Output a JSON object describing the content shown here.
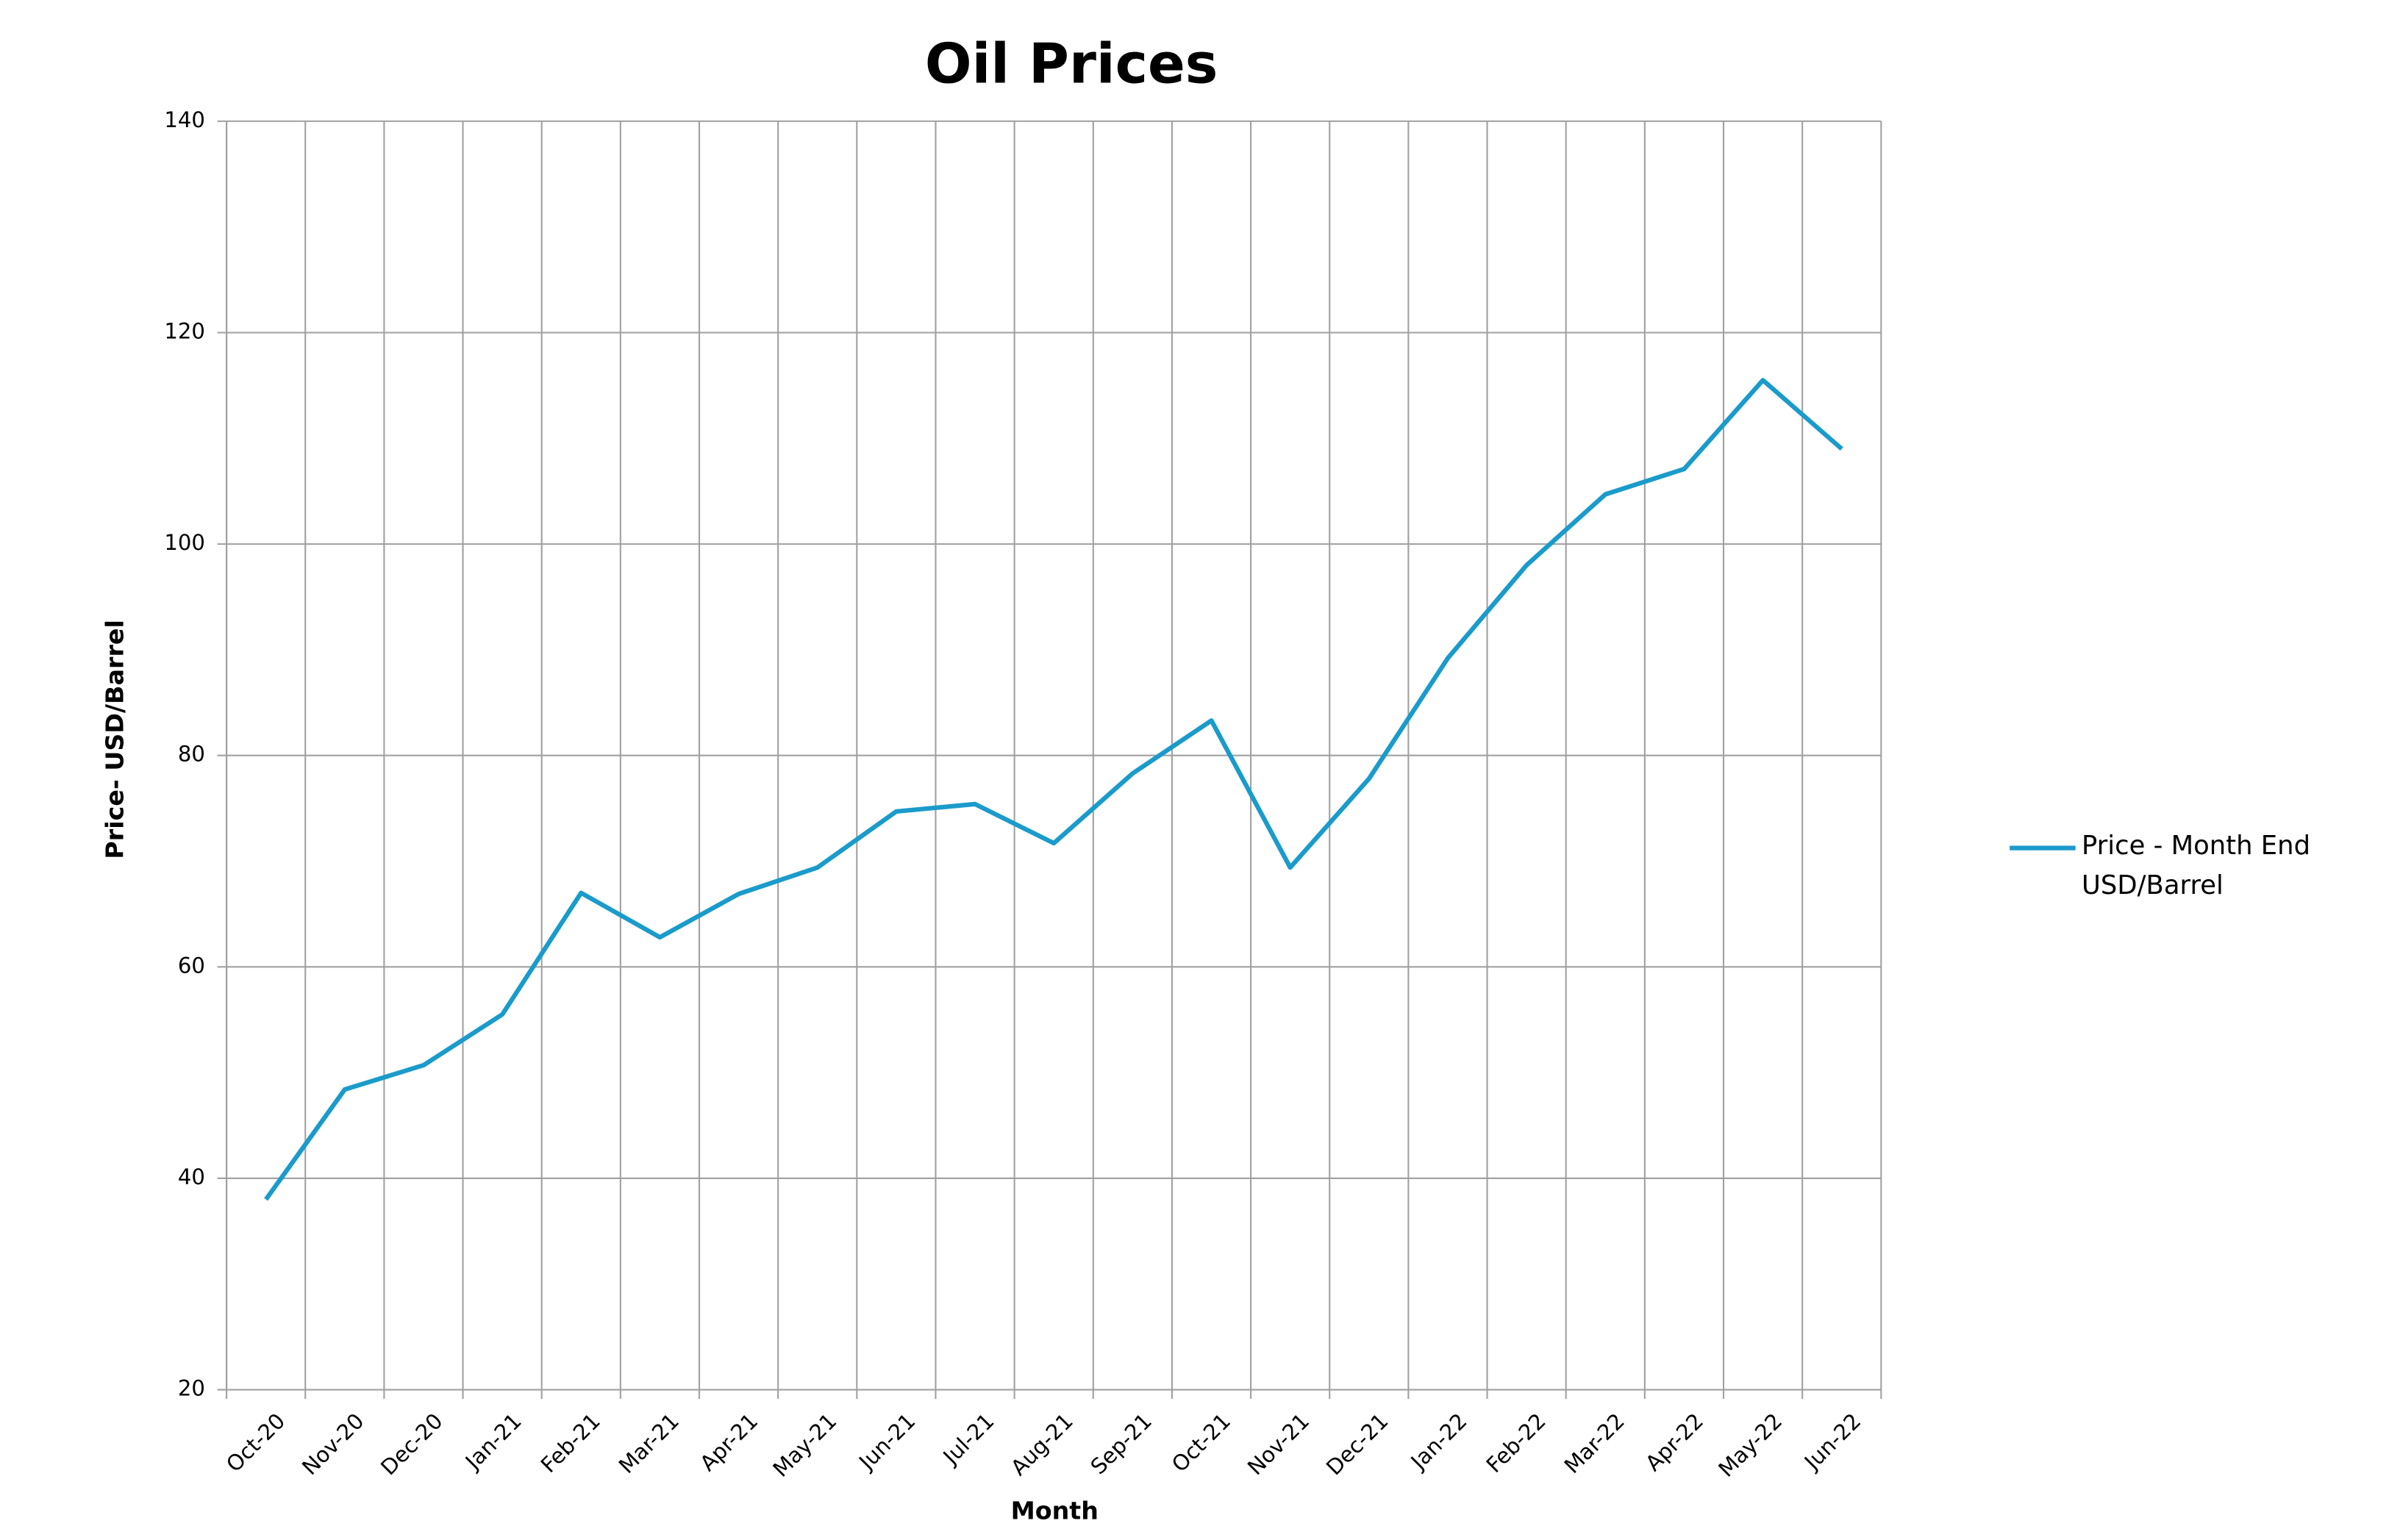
{
  "chart_data": {
    "type": "line",
    "title": "Oil Prices",
    "x_label": "Month",
    "y_label": "Price- USD/Barrel",
    "categories": [
      "Oct-20",
      "Nov-20",
      "Dec-20",
      "Jan-21",
      "Feb-21",
      "Mar-21",
      "Apr-21",
      "May-21",
      "Jun-21",
      "Jul-21",
      "Aug-21",
      "Sep-21",
      "Oct-21",
      "Nov-21",
      "Dec-21",
      "Jan-22",
      "Feb-22",
      "Mar-22",
      "Apr-22",
      "May-22",
      "Jun-22"
    ],
    "series": [
      {
        "name": "Price - Month End USD/Barrel",
        "color": "#1a9bcb",
        "values": [
          38,
          48.4,
          50.7,
          55.5,
          67,
          62.8,
          66.9,
          69.4,
          74.7,
          75.4,
          71.7,
          78.3,
          83.3,
          69.4,
          77.8,
          89.2,
          98,
          104.7,
          107.1,
          115.5,
          109
        ]
      }
    ],
    "ylim": [
      20,
      140
    ],
    "yticks": [
      20,
      40,
      60,
      80,
      100,
      120,
      140
    ],
    "grid": true,
    "legend": "right"
  }
}
